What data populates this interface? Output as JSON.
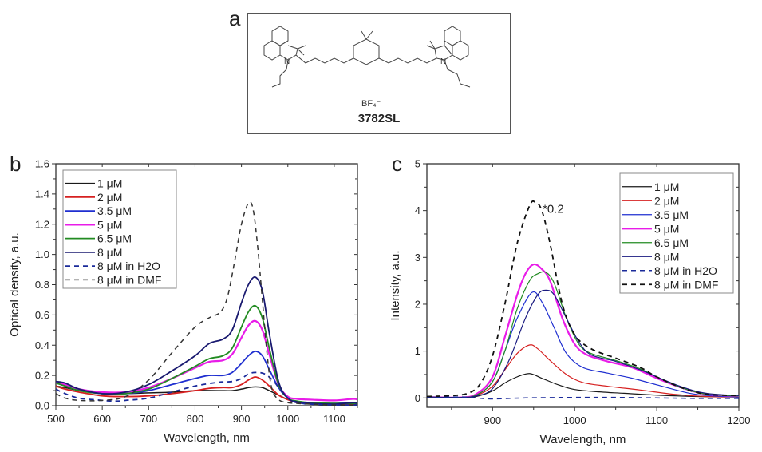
{
  "panels": {
    "a": {
      "letter": "a",
      "compound_name": "3782SL",
      "counter_ion": "BF₄⁻"
    },
    "b": {
      "letter": "b"
    },
    "c": {
      "letter": "c"
    }
  },
  "chart_data": [
    {
      "type": "line",
      "panel": "b",
      "title": "",
      "xlabel": "Wavelength, nm",
      "ylabel": "Optical density, a.u.",
      "xlim": [
        500,
        1150
      ],
      "ylim": [
        0.0,
        1.6
      ],
      "xticks": [
        500,
        600,
        700,
        800,
        900,
        1000,
        1100
      ],
      "xtick_labels": [
        "500",
        "600",
        "700",
        "800",
        "900",
        "1000",
        "1100"
      ],
      "yticks": [
        0.0,
        0.2,
        0.4,
        0.6,
        0.8,
        1.0,
        1.2,
        1.4,
        1.6
      ],
      "ytick_labels": [
        "0.0",
        "0.2",
        "0.4",
        "0.6",
        "0.8",
        "1.0",
        "1.2",
        "1.4",
        "1.6"
      ],
      "grid": false,
      "legend_position": "top-left",
      "series": [
        {
          "name": "1 μM",
          "color": "#1a1a1a",
          "dash": false,
          "width": 1.5,
          "x": [
            500,
            520,
            550,
            600,
            650,
            700,
            750,
            800,
            850,
            880,
            900,
            915,
            930,
            945,
            960,
            980,
            1000,
            1020,
            1050,
            1100,
            1150
          ],
          "y": [
            0.13,
            0.12,
            0.1,
            0.08,
            0.08,
            0.085,
            0.09,
            0.1,
            0.1,
            0.1,
            0.11,
            0.12,
            0.125,
            0.12,
            0.1,
            0.07,
            0.04,
            0.02,
            0.015,
            0.01,
            0.01
          ]
        },
        {
          "name": "2 μM",
          "color": "#d62020",
          "dash": false,
          "width": 1.8,
          "x": [
            500,
            520,
            550,
            600,
            650,
            700,
            750,
            800,
            830,
            860,
            880,
            900,
            915,
            930,
            945,
            960,
            980,
            1000,
            1020,
            1050,
            1100,
            1150
          ],
          "y": [
            0.13,
            0.11,
            0.09,
            0.065,
            0.06,
            0.065,
            0.08,
            0.1,
            0.115,
            0.12,
            0.12,
            0.14,
            0.17,
            0.19,
            0.17,
            0.13,
            0.07,
            0.04,
            0.02,
            0.015,
            0.01,
            0.01
          ]
        },
        {
          "name": "3.5 μM",
          "color": "#1f2fd0",
          "dash": false,
          "width": 1.8,
          "x": [
            500,
            520,
            550,
            600,
            650,
            700,
            750,
            800,
            830,
            860,
            880,
            900,
            915,
            930,
            945,
            960,
            980,
            1000,
            1020,
            1050,
            1100,
            1130,
            1150
          ],
          "y": [
            0.15,
            0.14,
            0.11,
            0.08,
            0.08,
            0.1,
            0.14,
            0.18,
            0.2,
            0.2,
            0.22,
            0.28,
            0.33,
            0.36,
            0.33,
            0.24,
            0.12,
            0.05,
            0.025,
            0.02,
            0.015,
            0.02,
            0.015
          ]
        },
        {
          "name": "5 μM",
          "color": "#e81ce8",
          "dash": false,
          "width": 2.2,
          "x": [
            500,
            520,
            550,
            600,
            650,
            700,
            750,
            800,
            830,
            860,
            880,
            900,
            915,
            930,
            945,
            960,
            980,
            1000,
            1020,
            1050,
            1100,
            1140,
            1150
          ],
          "y": [
            0.15,
            0.14,
            0.11,
            0.09,
            0.09,
            0.12,
            0.18,
            0.25,
            0.29,
            0.3,
            0.34,
            0.45,
            0.53,
            0.56,
            0.5,
            0.34,
            0.14,
            0.06,
            0.045,
            0.04,
            0.035,
            0.045,
            0.04
          ]
        },
        {
          "name": "6.5 μM",
          "color": "#228b22",
          "dash": false,
          "width": 1.8,
          "x": [
            500,
            520,
            550,
            600,
            650,
            700,
            750,
            800,
            830,
            860,
            880,
            900,
            915,
            930,
            945,
            960,
            980,
            1000,
            1020,
            1050,
            1100,
            1150
          ],
          "y": [
            0.15,
            0.13,
            0.1,
            0.08,
            0.08,
            0.11,
            0.18,
            0.26,
            0.31,
            0.33,
            0.38,
            0.52,
            0.62,
            0.66,
            0.58,
            0.38,
            0.14,
            0.05,
            0.03,
            0.02,
            0.015,
            0.015
          ]
        },
        {
          "name": "8 μM",
          "color": "#1a1a70",
          "dash": false,
          "width": 1.8,
          "x": [
            500,
            520,
            550,
            600,
            650,
            700,
            750,
            800,
            830,
            860,
            880,
            900,
            915,
            930,
            945,
            960,
            980,
            1000,
            1020,
            1050,
            1100,
            1140,
            1150
          ],
          "y": [
            0.16,
            0.15,
            0.11,
            0.08,
            0.09,
            0.14,
            0.23,
            0.33,
            0.41,
            0.44,
            0.5,
            0.68,
            0.8,
            0.85,
            0.76,
            0.48,
            0.16,
            0.05,
            0.025,
            0.015,
            0.01,
            0.02,
            0.015
          ]
        },
        {
          "name": "8 μM in H2O",
          "color": "#1a2a9a",
          "dash": true,
          "width": 1.8,
          "x": [
            500,
            520,
            550,
            600,
            630,
            650,
            700,
            750,
            800,
            850,
            880,
            900,
            915,
            930,
            950,
            970,
            990,
            1010,
            1030,
            1050,
            1100,
            1150
          ],
          "y": [
            0.11,
            0.08,
            0.05,
            0.035,
            0.03,
            0.035,
            0.05,
            0.09,
            0.13,
            0.155,
            0.16,
            0.18,
            0.21,
            0.22,
            0.21,
            0.16,
            0.08,
            0.03,
            0.015,
            0.01,
            0.005,
            0.005
          ]
        },
        {
          "name": "8 μM in DMF",
          "color": "#333333",
          "dash": true,
          "width": 1.5,
          "x": [
            500,
            520,
            550,
            600,
            650,
            700,
            750,
            800,
            830,
            855,
            870,
            885,
            900,
            915,
            925,
            935,
            945,
            955,
            965,
            980,
            1000,
            1020,
            1050,
            1100,
            1150
          ],
          "y": [
            0.08,
            0.05,
            0.035,
            0.035,
            0.06,
            0.17,
            0.35,
            0.52,
            0.58,
            0.62,
            0.72,
            0.95,
            1.2,
            1.34,
            1.3,
            1.05,
            0.7,
            0.35,
            0.12,
            0.04,
            0.02,
            0.015,
            0.01,
            0.005,
            0.005
          ]
        }
      ]
    },
    {
      "type": "line",
      "panel": "c",
      "title": "",
      "xlabel": "Wavelength, nm",
      "ylabel": "Intensity, a.u.",
      "xlim": [
        820,
        1200
      ],
      "ylim": [
        -0.2,
        5
      ],
      "xticks": [
        900,
        1000,
        1100,
        1200
      ],
      "xtick_labels": [
        "900",
        "1000",
        "1100",
        "1200"
      ],
      "yticks": [
        0,
        1,
        2,
        3,
        4,
        5
      ],
      "ytick_labels": [
        "0",
        "1",
        "2",
        "3",
        "4",
        "5"
      ],
      "grid": false,
      "legend_position": "top-right",
      "annotations": [
        {
          "text": "*0.2",
          "x": 961,
          "y": 3.95
        }
      ],
      "series": [
        {
          "name": "1 μM",
          "color": "#1a1a1a",
          "dash": false,
          "width": 1.2,
          "x": [
            820,
            860,
            880,
            900,
            915,
            930,
            945,
            960,
            980,
            1000,
            1030,
            1060,
            1100,
            1150,
            1200
          ],
          "y": [
            0.02,
            0.01,
            0.03,
            0.15,
            0.32,
            0.45,
            0.52,
            0.42,
            0.28,
            0.18,
            0.13,
            0.1,
            0.06,
            0.03,
            0.02
          ]
        },
        {
          "name": "2 μM",
          "color": "#d62020",
          "dash": false,
          "width": 1.2,
          "x": [
            820,
            860,
            880,
            900,
            915,
            930,
            945,
            955,
            970,
            990,
            1010,
            1040,
            1080,
            1120,
            1160,
            1200
          ],
          "y": [
            0.02,
            0.01,
            0.05,
            0.25,
            0.6,
            0.95,
            1.13,
            1.05,
            0.8,
            0.5,
            0.33,
            0.25,
            0.17,
            0.08,
            0.03,
            0.02
          ]
        },
        {
          "name": "3.5 μM",
          "color": "#1f2fd0",
          "dash": false,
          "width": 1.2,
          "x": [
            820,
            860,
            880,
            900,
            915,
            930,
            948,
            960,
            975,
            990,
            1010,
            1040,
            1070,
            1100,
            1140,
            1170,
            1200
          ],
          "y": [
            0.02,
            0.01,
            0.06,
            0.35,
            1.0,
            1.7,
            2.25,
            2.05,
            1.5,
            0.95,
            0.65,
            0.53,
            0.42,
            0.28,
            0.1,
            0.04,
            0.02
          ]
        },
        {
          "name": "5 μM",
          "color": "#e81ce8",
          "dash": false,
          "width": 2.2,
          "x": [
            820,
            860,
            880,
            900,
            915,
            930,
            940,
            950,
            960,
            970,
            985,
            1000,
            1015,
            1040,
            1070,
            1100,
            1130,
            1160,
            1200
          ],
          "y": [
            0.02,
            0.01,
            0.08,
            0.45,
            1.3,
            2.2,
            2.65,
            2.85,
            2.75,
            2.5,
            1.7,
            1.15,
            0.92,
            0.78,
            0.65,
            0.42,
            0.22,
            0.08,
            0.04
          ]
        },
        {
          "name": "6.5 μM",
          "color": "#228b22",
          "dash": false,
          "width": 1.2,
          "x": [
            820,
            860,
            880,
            900,
            915,
            930,
            945,
            955,
            965,
            975,
            990,
            1005,
            1020,
            1050,
            1080,
            1100,
            1130,
            1160,
            1200
          ],
          "y": [
            0.02,
            0.01,
            0.06,
            0.35,
            1.0,
            1.9,
            2.5,
            2.65,
            2.68,
            2.45,
            1.7,
            1.15,
            0.95,
            0.8,
            0.62,
            0.45,
            0.22,
            0.08,
            0.04
          ]
        },
        {
          "name": "8 μM",
          "color": "#1a1a80",
          "dash": false,
          "width": 1.2,
          "x": [
            820,
            860,
            880,
            900,
            920,
            940,
            955,
            965,
            975,
            990,
            1005,
            1020,
            1050,
            1080,
            1100,
            1130,
            1160,
            1200
          ],
          "y": [
            0.02,
            0.01,
            0.04,
            0.2,
            0.8,
            1.7,
            2.2,
            2.3,
            2.2,
            1.7,
            1.2,
            0.92,
            0.78,
            0.6,
            0.45,
            0.24,
            0.1,
            0.05
          ]
        },
        {
          "name": "8 μM in H2O",
          "color": "#1a2a9a",
          "dash": true,
          "width": 1.5,
          "x": [
            820,
            860,
            880,
            900,
            940,
            1000,
            1050,
            1100,
            1150,
            1200
          ],
          "y": [
            0.01,
            0.02,
            0.0,
            -0.02,
            0.0,
            0.01,
            0.01,
            0.0,
            -0.01,
            -0.01
          ]
        },
        {
          "name": "8 μM in DMF",
          "color": "#111111",
          "dash": true,
          "width": 1.8,
          "x": [
            820,
            850,
            870,
            885,
            900,
            915,
            930,
            945,
            952,
            960,
            970,
            985,
            1000,
            1020,
            1050,
            1080,
            1100,
            1130,
            1160,
            1200
          ],
          "y": [
            0.03,
            0.05,
            0.1,
            0.3,
            0.9,
            2.0,
            3.3,
            4.1,
            4.18,
            4.0,
            3.3,
            2.0,
            1.35,
            1.05,
            0.85,
            0.65,
            0.45,
            0.22,
            0.08,
            0.05
          ]
        }
      ]
    }
  ]
}
